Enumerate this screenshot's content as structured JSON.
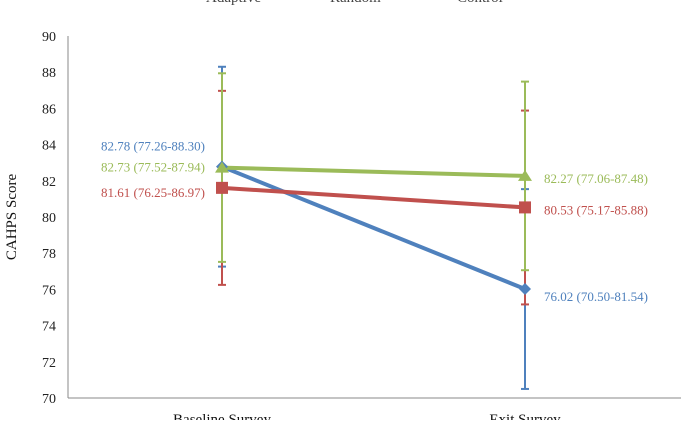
{
  "chart_data": {
    "type": "line",
    "title": "",
    "xlabel": "",
    "ylabel": "CAHPS Score",
    "categories": [
      "Baseline Survey",
      "Exit Survey"
    ],
    "ylim": [
      70,
      90
    ],
    "yticks": [
      70,
      72,
      74,
      76,
      78,
      80,
      82,
      84,
      86,
      88,
      90
    ],
    "grid": false,
    "legend_position": "top",
    "series": [
      {
        "name": "Adaptive",
        "color": "#4f81bd",
        "marker": "diamond",
        "values": [
          82.78,
          76.02
        ],
        "ci_low": [
          77.26,
          70.5
        ],
        "ci_high": [
          88.3,
          81.54
        ],
        "labels": [
          "82.78 (77.26-88.30)",
          "76.02 (70.50-81.54)"
        ]
      },
      {
        "name": "Random",
        "color": "#c0504d",
        "marker": "square",
        "values": [
          81.61,
          80.53
        ],
        "ci_low": [
          76.25,
          75.17
        ],
        "ci_high": [
          86.97,
          85.88
        ],
        "labels": [
          "81.61 (76.25-86.97)",
          "80.53 (75.17-85.88)"
        ]
      },
      {
        "name": "Control",
        "color": "#9bbb59",
        "marker": "triangle",
        "values": [
          82.73,
          82.27
        ],
        "ci_low": [
          77.52,
          77.06
        ],
        "ci_high": [
          87.94,
          87.48
        ],
        "labels": [
          "82.73 (77.52-87.94)",
          "82.27 (77.06-87.48)"
        ]
      }
    ]
  }
}
